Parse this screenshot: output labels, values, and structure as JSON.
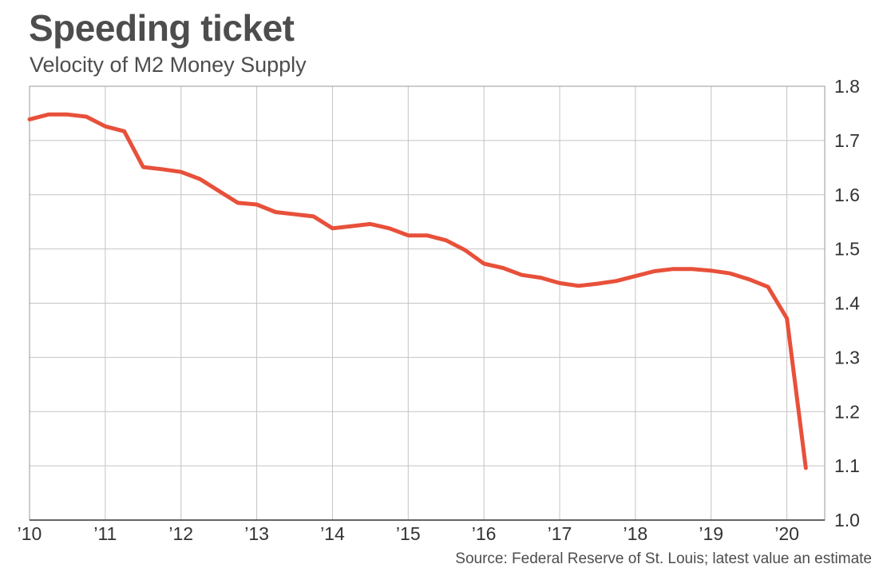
{
  "title": "Speeding ticket",
  "subtitle": "Velocity of M2 Money Supply",
  "source": "Source: Federal Reserve of St. Louis; latest value an estimate",
  "colors": {
    "line": "#e8503a",
    "grid": "#c4c4c4",
    "text": "#4d4d4d"
  },
  "chart_data": {
    "type": "line",
    "title": "Speeding ticket",
    "subtitle": "Velocity of M2 Money Supply",
    "xlabel": "",
    "ylabel": "",
    "x_tick_labels": [
      "’10",
      "’11",
      "’12",
      "’13",
      "’14",
      "’15",
      "’16",
      "’17",
      "’18",
      "’19",
      "’20"
    ],
    "y_ticks": [
      1.0,
      1.1,
      1.2,
      1.3,
      1.4,
      1.5,
      1.6,
      1.7,
      1.8
    ],
    "ylim": [
      1.0,
      1.8
    ],
    "xlim": [
      "2010-01",
      "2020-07"
    ],
    "grid": true,
    "series": [
      {
        "x": [
          "2010-01",
          "2010-04",
          "2010-07",
          "2010-10",
          "2011-01",
          "2011-04",
          "2011-07",
          "2011-10",
          "2012-01",
          "2012-04",
          "2012-07",
          "2012-10",
          "2013-01",
          "2013-04",
          "2013-07",
          "2013-10",
          "2014-01",
          "2014-04",
          "2014-07",
          "2014-10",
          "2015-01",
          "2015-04",
          "2015-07",
          "2015-10",
          "2016-01",
          "2016-04",
          "2016-07",
          "2016-10",
          "2017-01",
          "2017-04",
          "2017-07",
          "2017-10",
          "2018-01",
          "2018-04",
          "2018-07",
          "2018-10",
          "2019-01",
          "2019-04",
          "2019-07",
          "2019-10",
          "2020-01",
          "2020-04"
        ],
        "values": [
          1.739,
          1.748,
          1.748,
          1.744,
          1.726,
          1.717,
          1.651,
          1.647,
          1.642,
          1.629,
          1.607,
          1.585,
          1.582,
          1.568,
          1.564,
          1.56,
          1.538,
          1.542,
          1.546,
          1.538,
          1.525,
          1.525,
          1.516,
          1.498,
          1.473,
          1.465,
          1.452,
          1.447,
          1.437,
          1.432,
          1.436,
          1.441,
          1.45,
          1.459,
          1.463,
          1.463,
          1.46,
          1.455,
          1.444,
          1.43,
          1.372,
          1.096
        ]
      }
    ]
  }
}
